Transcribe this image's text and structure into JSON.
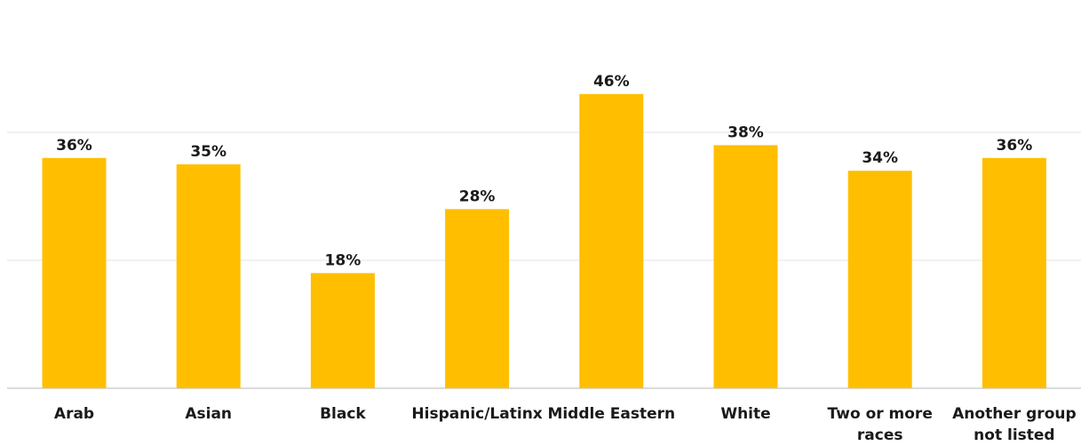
{
  "chart_data": {
    "type": "bar",
    "categories": [
      [
        "Arab"
      ],
      [
        "Asian"
      ],
      [
        "Black"
      ],
      [
        "Hispanic/Latinx"
      ],
      [
        "Middle Eastern"
      ],
      [
        "White"
      ],
      [
        "Two or more",
        "races"
      ],
      [
        "Another group",
        "not listed"
      ]
    ],
    "values": [
      36,
      35,
      18,
      28,
      46,
      38,
      34,
      36
    ],
    "value_labels": [
      "36%",
      "35%",
      "18%",
      "28%",
      "46%",
      "38%",
      "34%",
      "36%"
    ],
    "unit": "%",
    "ylim": [
      0,
      60
    ],
    "gridlines": [
      20,
      40
    ],
    "grid": true,
    "legend": "none",
    "title": "",
    "xlabel": "",
    "ylabel": "",
    "colors": {
      "bar": "#FFBF00",
      "gridline": "#e3e3e3",
      "text": "#1a1a1a"
    }
  }
}
